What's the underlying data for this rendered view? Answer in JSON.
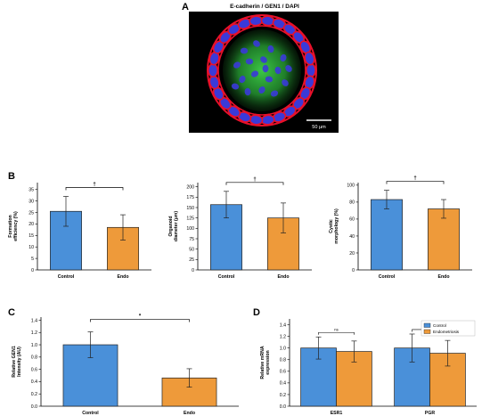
{
  "panels": {
    "a": "A",
    "b": "B",
    "c": "C",
    "d": "D"
  },
  "microscopy": {
    "title": "E-cadherin / GEN1 / DAPI",
    "scale_label": "50 µm",
    "colors": {
      "background": "#000000",
      "membrane": "#e8102a",
      "nuclei": "#3a3ad8",
      "gen1": "#2fbf3a"
    }
  },
  "colors": {
    "control": "#4a90d9",
    "endo": "#ee9a3a",
    "outline": "#222222"
  },
  "chart_data": [
    {
      "id": "b1",
      "type": "bar",
      "categories": [
        "Control",
        "Endo"
      ],
      "values": [
        25.5,
        18.5
      ],
      "errors": [
        6.5,
        5.5
      ],
      "ylabel": "Formation\nefficiency (%)",
      "ylim": [
        0,
        38
      ],
      "yticks": [
        0,
        5,
        10,
        15,
        20,
        25,
        30,
        35
      ],
      "significance": "†"
    },
    {
      "id": "b2",
      "type": "bar",
      "categories": [
        "Control",
        "Endo"
      ],
      "values": [
        157,
        125
      ],
      "errors": [
        32,
        36
      ],
      "ylabel": "Organoid\ndiameter (µm)",
      "ylim": [
        0,
        210
      ],
      "yticks": [
        0,
        25,
        50,
        75,
        100,
        125,
        150,
        175,
        200
      ],
      "significance": "†"
    },
    {
      "id": "b3",
      "type": "bar",
      "categories": [
        "Control",
        "Endo"
      ],
      "values": [
        83,
        72
      ],
      "errors": [
        11,
        11
      ],
      "ylabel": "Cystic\nmorphology (%)",
      "ylim": [
        0,
        103
      ],
      "yticks": [
        0,
        20,
        40,
        60,
        80,
        100
      ],
      "significance": "†"
    },
    {
      "id": "c",
      "type": "bar",
      "categories": [
        "Control",
        "Endo"
      ],
      "values": [
        1.0,
        0.46
      ],
      "errors": [
        0.21,
        0.15
      ],
      "ylabel": "Relative GEN1\nIntensity (AU)",
      "ylim": [
        0,
        1.45
      ],
      "yticks": [
        0.0,
        0.2,
        0.4,
        0.6,
        0.8,
        1.0,
        1.2,
        1.4
      ],
      "significance": "*"
    },
    {
      "id": "d",
      "type": "bar",
      "categories": [
        "ESR1",
        "PGR"
      ],
      "series": [
        {
          "name": "Control",
          "values": [
            1.0,
            1.0
          ],
          "errors": [
            0.19,
            0.24
          ]
        },
        {
          "name": "Endometriosis",
          "values": [
            0.94,
            0.91
          ],
          "errors": [
            0.18,
            0.22
          ]
        }
      ],
      "ylabel": "Relative mRNA\nexpression",
      "ylim": [
        0,
        1.5
      ],
      "yticks": [
        0.0,
        0.2,
        0.4,
        0.6,
        0.8,
        1.0,
        1.2,
        1.4
      ],
      "significance": [
        "ns",
        "ns"
      ],
      "legend": "top-right"
    }
  ]
}
